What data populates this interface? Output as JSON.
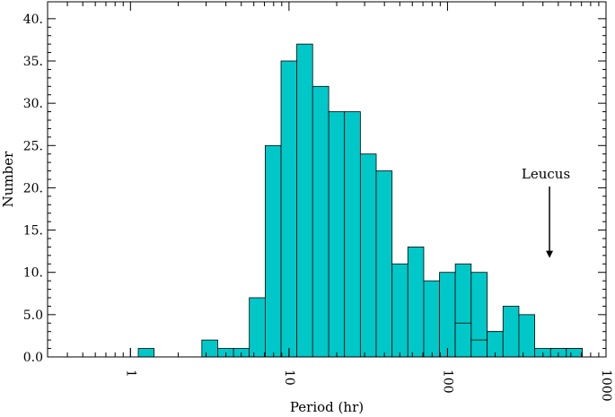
{
  "chart_data": {
    "type": "bar",
    "title": "",
    "xlabel": "Period (hr)",
    "ylabel": "Number",
    "x_scale": "log",
    "xlim": [
      0.3,
      1000
    ],
    "ylim": [
      0,
      42
    ],
    "x_tick_labels": [
      "1",
      "10",
      "100",
      "1000"
    ],
    "y_tick_labels": [
      "0.0",
      "5.0",
      "10.",
      "15.",
      "20.",
      "25.",
      "30.",
      "35.",
      "40."
    ],
    "bar_color": "#00c8c8",
    "annotation": {
      "text": "Leucus",
      "x": 440,
      "y_arrow_tip": 11.7
    },
    "bins": [
      {
        "x0": 1.12,
        "x1": 1.41,
        "value": 1
      },
      {
        "x0": 2.82,
        "x1": 3.55,
        "value": 2
      },
      {
        "x0": 3.55,
        "x1": 4.47,
        "value": 1
      },
      {
        "x0": 4.47,
        "x1": 5.62,
        "value": 1
      },
      {
        "x0": 5.62,
        "x1": 7.08,
        "value": 7
      },
      {
        "x0": 7.08,
        "x1": 8.91,
        "value": 25
      },
      {
        "x0": 8.91,
        "x1": 11.2,
        "value": 35
      },
      {
        "x0": 11.2,
        "x1": 14.1,
        "value": 37
      },
      {
        "x0": 14.1,
        "x1": 17.8,
        "value": 32
      },
      {
        "x0": 17.8,
        "x1": 22.4,
        "value": 29
      },
      {
        "x0": 22.4,
        "x1": 28.2,
        "value": 29
      },
      {
        "x0": 28.2,
        "x1": 35.5,
        "value": 24
      },
      {
        "x0": 35.5,
        "x1": 44.7,
        "value": 22
      },
      {
        "x0": 44.7,
        "x1": 56.2,
        "value": 11
      },
      {
        "x0": 56.2,
        "x1": 70.8,
        "value": 13
      },
      {
        "x0": 70.8,
        "x1": 89.1,
        "value": 9
      },
      {
        "x0": 89.1,
        "x1": 112,
        "value": 10
      },
      {
        "x0": 112,
        "x1": 141,
        "value": 11
      },
      {
        "x0": 141,
        "x1": 178,
        "value": 10
      },
      {
        "x0": 178,
        "x1": 224,
        "value": 3
      },
      {
        "x0": 224,
        "x1": 282,
        "value": 2
      },
      {
        "x0": 282,
        "x1": 355,
        "value": 2
      },
      {
        "x0": 447,
        "x1": 562,
        "value": 1
      },
      {
        "x0": 562,
        "x1": 708,
        "value": 1
      },
      {
        "x0": 1120,
        "x1": 1410,
        "value": 4
      },
      {
        "x0": 1410,
        "x1": 1780,
        "value": 2
      },
      {
        "x0": 1780,
        "x1": 2240,
        "value": 3
      },
      {
        "x0": 2240,
        "x1": 2820,
        "value": 6
      },
      {
        "x0": 2820,
        "x1": 3550,
        "value": 5
      },
      {
        "x0": 3550,
        "x1": 4470,
        "value": 1
      },
      {
        "x0": 4470,
        "x1": 5620,
        "value": 1
      },
      {
        "x0": 5620,
        "x1": 7080,
        "value": 1
      }
    ]
  }
}
